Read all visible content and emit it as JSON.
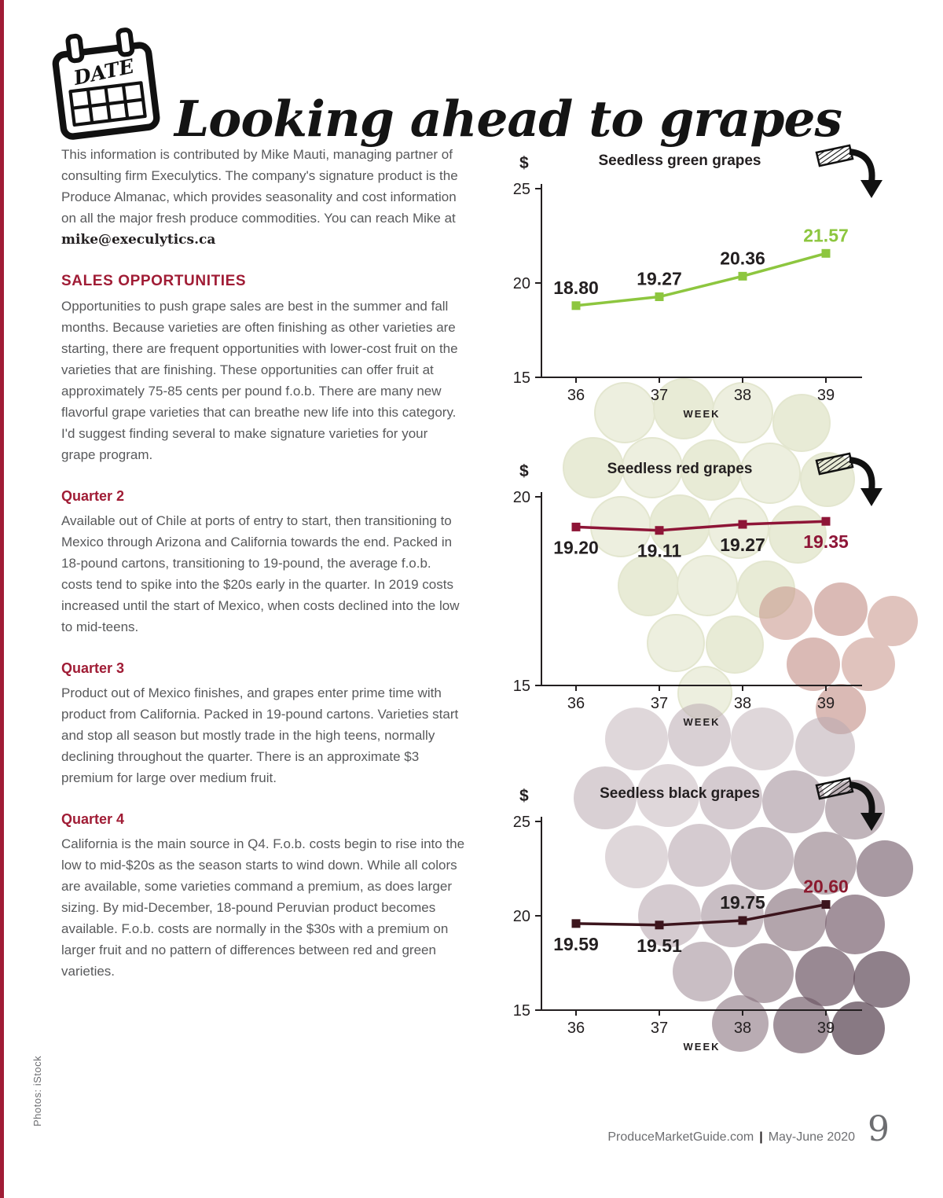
{
  "page": {
    "title": "Looking ahead to grapes",
    "calendar_icon_label": "DATE",
    "photo_credit": "Photos: iStock",
    "footer": {
      "site": "ProduceMarketGuide.com",
      "separator": "|",
      "issue": "May-June 2020",
      "page_number": "9"
    }
  },
  "colors": {
    "accent_red": "#a01c35",
    "body_text": "#58595b",
    "axis_black": "#231f20",
    "green": "#8dc63f",
    "dark_red": "#8e1537",
    "black_grape": "#3c151d"
  },
  "intro": {
    "text": "This information is contributed by Mike Mauti, managing partner of consulting firm Execulytics. The company's signature product is the Produce Almanac, which provides seasonality and cost information on all the major fresh produce commodities. You can reach Mike at",
    "email": "mike@execulytics.ca"
  },
  "sections": [
    {
      "heading": "SALES OPPORTUNITIES",
      "body": "Opportunities to push grape sales are best in the summer and fall months. Because varieties are often finishing as other varieties are starting, there are frequent opportunities with lower-cost fruit on the varieties that are finishing. These opportunities can offer fruit at approximately 75-85 cents per pound f.o.b. There are many new flavorful grape varieties that can breathe new life into this category. I'd suggest finding several to make signature varieties for your grape program."
    },
    {
      "heading": "Quarter 2",
      "body": "Available out of Chile at ports of entry to start, then transitioning to Mexico through Arizona and California towards the end. Packed in 18-pound cartons, transitioning to 19-pound, the average f.o.b. costs tend to spike into the $20s early in the quarter. In 2019 costs increased until the start of Mexico, when costs declined into the low to mid-teens."
    },
    {
      "heading": "Quarter 3",
      "body": "Product out of Mexico finishes, and grapes enter prime time with product from California. Packed in 19-pound cartons. Varieties start and stop all season but mostly trade in the high teens, normally declining throughout the quarter. There is an approximate $3 premium for large over medium fruit."
    },
    {
      "heading": "Quarter 4",
      "body": "California is the main source in Q4. F.o.b. costs begin to rise into the low to mid-$20s as the season starts to wind down. While all colors are available, some varieties command a premium, as does larger sizing. By mid-December, 18-pound Peruvian product becomes available. F.o.b. costs are normally in the $30s with a premium on larger fruit and no pattern of differences between red and green varieties."
    }
  ],
  "chart_data": [
    {
      "type": "line",
      "title": "Seedless green grapes",
      "x": [
        36,
        37,
        38,
        39
      ],
      "values": [
        18.8,
        19.27,
        20.36,
        21.57
      ],
      "point_labels": [
        "18.80",
        "19.27",
        "20.36",
        "21.57"
      ],
      "label_positions": [
        "above",
        "above",
        "above",
        "above"
      ],
      "label_colors": [
        "#231f20",
        "#231f20",
        "#231f20",
        "#8dc63f"
      ],
      "xlabel": "WEEK",
      "ylabel": "$",
      "ylim": [
        15,
        25
      ],
      "yticks": [
        25,
        20,
        15
      ],
      "line_color": "#8dc63f",
      "legend": "none",
      "grid": false
    },
    {
      "type": "line",
      "title": "Seedless red grapes",
      "x": [
        36,
        37,
        38,
        39
      ],
      "values": [
        19.2,
        19.11,
        19.27,
        19.35
      ],
      "point_labels": [
        "19.20",
        "19.11",
        "19.27",
        "19.35"
      ],
      "label_positions": [
        "below",
        "below",
        "below",
        "below"
      ],
      "label_colors": [
        "#231f20",
        "#231f20",
        "#231f20",
        "#8e1537"
      ],
      "xlabel": "WEEK",
      "ylabel": "$",
      "ylim": [
        15,
        20
      ],
      "yticks": [
        20,
        15
      ],
      "line_color": "#8e1537",
      "legend": "none",
      "grid": false
    },
    {
      "type": "line",
      "title": "Seedless black grapes",
      "x": [
        36,
        37,
        38,
        39
      ],
      "values": [
        19.59,
        19.51,
        19.75,
        20.6
      ],
      "point_labels": [
        "19.59",
        "19.51",
        "19.75",
        "20.60"
      ],
      "label_positions": [
        "below",
        "below",
        "above",
        "above"
      ],
      "label_colors": [
        "#231f20",
        "#231f20",
        "#231f20",
        "#8b1a2f"
      ],
      "xlabel": "WEEK",
      "ylabel": "$",
      "ylim": [
        15,
        25
      ],
      "yticks": [
        25,
        20,
        15
      ],
      "line_color": "#3c151d",
      "legend": "none",
      "grid": false
    }
  ]
}
